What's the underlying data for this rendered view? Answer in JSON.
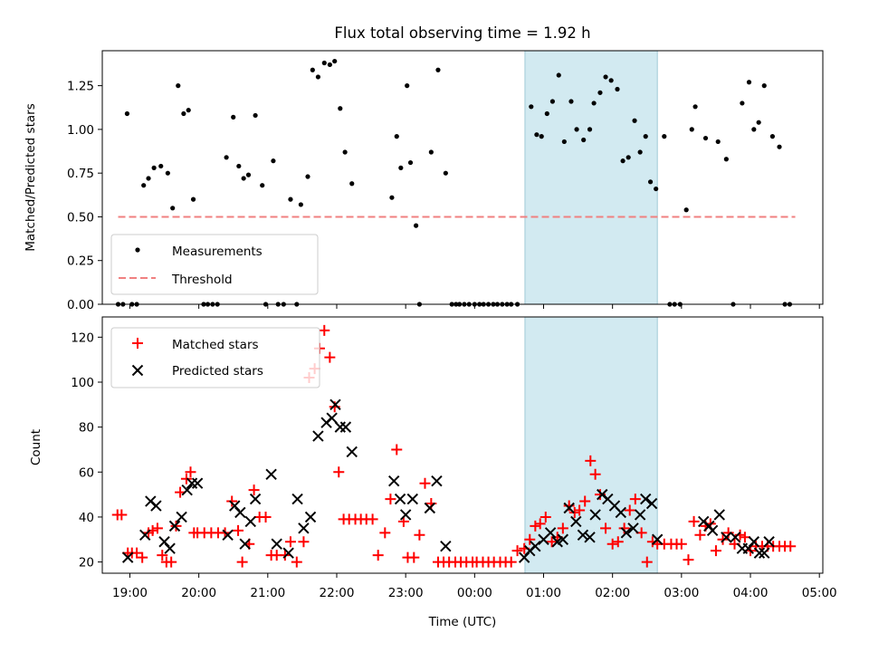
{
  "chart_data": [
    {
      "id": "ratio",
      "type": "scatter",
      "title": "Flux total observing time = 1.92 h",
      "xlabel": "",
      "ylabel": "Matched/Predicted stars",
      "xlim": [
        18.6,
        29.05
      ],
      "ylim": [
        0,
        1.45
      ],
      "yticks": [
        0,
        0.25,
        0.5,
        0.75,
        1.0,
        1.25
      ],
      "ytick_labels": [
        "0.00",
        "0.25",
        "0.50",
        "0.75",
        "1.00",
        "1.25"
      ],
      "highlight_span": [
        24.73,
        26.65
      ],
      "highlight_color": "#add8e6",
      "legend_position": "lower-left",
      "series": [
        {
          "name": "Measurements",
          "kind": "points",
          "color": "#000000",
          "x": [
            18.83,
            18.9,
            18.96,
            19.03,
            19.1,
            19.2,
            19.27,
            19.35,
            19.45,
            19.55,
            19.62,
            19.7,
            19.78,
            19.85,
            19.92,
            20.07,
            20.13,
            20.2,
            20.27,
            20.4,
            20.5,
            20.58,
            20.65,
            20.72,
            20.82,
            20.92,
            20.97,
            21.08,
            21.15,
            21.23,
            21.33,
            21.42,
            21.48,
            21.58,
            21.65,
            21.73,
            21.82,
            21.9,
            21.97,
            22.05,
            22.12,
            22.22,
            22.8,
            22.87,
            22.93,
            23.02,
            23.07,
            23.15,
            23.2,
            23.37,
            23.47,
            23.58,
            23.67,
            23.73,
            23.78,
            23.85,
            23.92,
            24.0,
            24.07,
            24.13,
            24.2,
            24.27,
            24.33,
            24.4,
            24.47,
            24.53,
            24.62,
            24.82,
            24.9,
            24.97,
            25.05,
            25.13,
            25.22,
            25.3,
            25.4,
            25.48,
            25.58,
            25.67,
            25.73,
            25.82,
            25.9,
            25.98,
            26.07,
            26.15,
            26.23,
            26.32,
            26.4,
            26.48,
            26.55,
            26.63,
            26.75,
            26.83,
            26.9,
            26.98,
            27.07,
            27.15,
            27.2,
            27.35,
            27.53,
            27.65,
            27.75,
            27.88,
            27.98,
            28.05,
            28.12,
            28.2,
            28.32,
            28.42,
            28.5,
            28.57
          ],
          "y": [
            0,
            0,
            1.09,
            0,
            0,
            0.68,
            0.72,
            0.78,
            0.79,
            0.75,
            0.55,
            1.25,
            1.09,
            1.11,
            0.6,
            0,
            0,
            0,
            0,
            0.84,
            1.07,
            0.79,
            0.72,
            0.74,
            1.08,
            0.68,
            0,
            0.82,
            0,
            0,
            0.6,
            0,
            0.57,
            0.73,
            1.34,
            1.3,
            1.38,
            1.37,
            1.39,
            1.12,
            0.87,
            0.69,
            0.61,
            0.96,
            0.78,
            1.25,
            0.81,
            0.45,
            0,
            0.87,
            1.34,
            0.75,
            0,
            0,
            0,
            0,
            0,
            0,
            0,
            0,
            0,
            0,
            0,
            0,
            0,
            0,
            0,
            1.13,
            0.97,
            0.96,
            1.09,
            1.16,
            1.31,
            0.93,
            1.16,
            1.0,
            0.94,
            1.0,
            1.15,
            1.21,
            1.3,
            1.28,
            1.23,
            0.82,
            0.84,
            1.05,
            0.87,
            0.96,
            0.7,
            0.66,
            0.96,
            0,
            0,
            0,
            0.54,
            1.0,
            1.13,
            0.95,
            0.93,
            0.83,
            0,
            1.15,
            1.27,
            1.0,
            1.04,
            1.25,
            0.96,
            0.9,
            0,
            0
          ]
        },
        {
          "name": "Threshold",
          "kind": "line",
          "color": "#f08080",
          "x": [
            18.83,
            28.65
          ],
          "y": [
            0.5,
            0.5
          ]
        }
      ]
    },
    {
      "id": "counts",
      "type": "scatter",
      "title": "",
      "xlabel": "Time (UTC)",
      "ylabel": "Count",
      "xlim": [
        18.6,
        29.05
      ],
      "ylim": [
        15,
        129
      ],
      "yticks": [
        20,
        40,
        60,
        80,
        100,
        120
      ],
      "ytick_labels": [
        "20",
        "40",
        "60",
        "80",
        "100",
        "120"
      ],
      "xticks": [
        19,
        20,
        21,
        22,
        23,
        24,
        25,
        26,
        27,
        28,
        29
      ],
      "xtick_labels": [
        "19:00",
        "20:00",
        "21:00",
        "22:00",
        "23:00",
        "00:00",
        "01:00",
        "02:00",
        "03:00",
        "04:00",
        "05:00"
      ],
      "highlight_span": [
        24.73,
        26.65
      ],
      "highlight_color": "#add8e6",
      "legend_position": "top-left",
      "series": [
        {
          "name": "Matched stars",
          "marker": "plus",
          "color": "#ff0000",
          "x": [
            18.82,
            18.88,
            18.97,
            19.03,
            19.1,
            19.18,
            19.27,
            19.33,
            19.4,
            19.47,
            19.53,
            19.6,
            19.67,
            19.73,
            19.82,
            19.88,
            19.93,
            19.98,
            20.08,
            20.18,
            20.28,
            20.38,
            20.48,
            20.57,
            20.63,
            20.73,
            20.8,
            20.88,
            20.97,
            21.05,
            21.13,
            21.25,
            21.33,
            21.42,
            21.52,
            21.6,
            21.68,
            21.75,
            21.82,
            21.9,
            21.97,
            22.03,
            22.1,
            22.18,
            22.27,
            22.35,
            22.43,
            22.52,
            22.6,
            22.7,
            22.78,
            22.87,
            22.97,
            23.03,
            23.12,
            23.2,
            23.28,
            23.37,
            23.47,
            23.55,
            23.63,
            23.72,
            23.8,
            23.88,
            23.97,
            24.03,
            24.12,
            24.2,
            24.28,
            24.37,
            24.45,
            24.53,
            24.62,
            24.72,
            24.8,
            24.88,
            24.95,
            25.03,
            25.12,
            25.2,
            25.28,
            25.37,
            25.45,
            25.52,
            25.6,
            25.68,
            25.75,
            25.82,
            25.9,
            26.0,
            26.08,
            26.17,
            26.25,
            26.33,
            26.42,
            26.5,
            26.58,
            26.65,
            26.75,
            26.85,
            26.93,
            27.0,
            27.1,
            27.18,
            27.27,
            27.35,
            27.42,
            27.5,
            27.6,
            27.68,
            27.77,
            27.85,
            27.92,
            28.0,
            28.08,
            28.17,
            28.25,
            28.33,
            28.42,
            28.5,
            28.58
          ],
          "y": [
            41,
            41,
            24,
            24,
            24,
            22,
            33,
            34,
            35,
            23,
            20,
            20,
            36,
            51,
            57,
            60,
            33,
            33,
            33,
            33,
            33,
            33,
            47,
            34,
            20,
            28,
            52,
            40,
            40,
            23,
            23,
            23,
            29,
            20,
            29,
            102,
            106,
            115,
            123,
            111,
            89,
            60,
            39,
            39,
            39,
            39,
            39,
            39,
            23,
            33,
            48,
            70,
            38,
            22,
            22,
            32,
            55,
            46,
            20,
            20,
            20,
            20,
            20,
            20,
            20,
            20,
            20,
            20,
            20,
            20,
            20,
            20,
            25,
            26,
            30,
            36,
            37,
            40,
            29,
            31,
            35,
            45,
            42,
            43,
            47,
            65,
            59,
            50,
            35,
            28,
            29,
            35,
            43,
            48,
            33,
            20,
            29,
            28,
            28,
            28,
            28,
            28,
            21,
            38,
            32,
            36,
            37,
            25,
            30,
            33,
            28,
            32,
            31,
            25,
            27,
            27,
            27,
            27,
            27,
            27,
            27
          ]
        },
        {
          "name": "Predicted stars",
          "marker": "x",
          "color": "#000000",
          "x": [
            18.97,
            19.22,
            19.3,
            19.38,
            19.5,
            19.58,
            19.65,
            19.75,
            19.83,
            19.9,
            19.98,
            20.42,
            20.52,
            20.6,
            20.67,
            20.75,
            20.82,
            21.05,
            21.13,
            21.3,
            21.43,
            21.52,
            21.62,
            21.73,
            21.85,
            21.93,
            21.98,
            22.05,
            22.13,
            22.22,
            22.83,
            22.92,
            23.0,
            23.1,
            23.35,
            23.45,
            23.58,
            24.72,
            24.8,
            24.88,
            25.0,
            25.1,
            25.2,
            25.28,
            25.37,
            25.47,
            25.57,
            25.67,
            25.75,
            25.85,
            25.93,
            26.03,
            26.12,
            26.2,
            26.3,
            26.4,
            26.48,
            26.57,
            26.65,
            27.32,
            27.4,
            27.45,
            27.55,
            27.65,
            27.78,
            27.88,
            27.97,
            28.05,
            28.13,
            28.2,
            28.27
          ],
          "y": [
            22,
            32,
            47,
            45,
            29,
            26,
            36,
            40,
            52,
            55,
            55,
            32,
            45,
            42,
            28,
            38,
            48,
            59,
            28,
            24,
            48,
            35,
            40,
            76,
            82,
            84,
            90,
            80,
            80,
            69,
            56,
            48,
            41,
            48,
            44,
            56,
            27,
            22,
            25,
            27,
            30,
            33,
            29,
            30,
            44,
            38,
            32,
            31,
            41,
            50,
            48,
            45,
            42,
            33,
            35,
            41,
            48,
            46,
            30,
            38,
            36,
            34,
            41,
            31,
            31,
            26,
            26,
            29,
            24,
            24,
            29
          ]
        }
      ]
    }
  ]
}
